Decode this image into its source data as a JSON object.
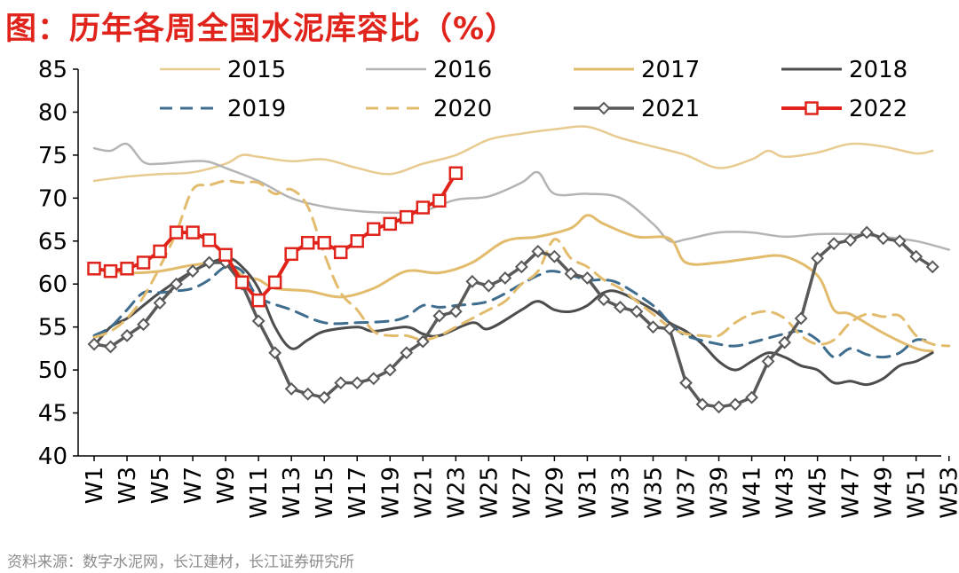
{
  "header": {
    "title": "图：历年各周全国水泥库容比（%）",
    "source": "资料来源：数字水泥网，长江建材，长江证券研究所"
  },
  "chart_data": {
    "type": "line",
    "title": "图：历年各周全国水泥库容比（%）",
    "ylim": [
      40,
      85
    ],
    "yticks": [
      "40",
      "45",
      "50",
      "55",
      "60",
      "65",
      "70",
      "75",
      "80",
      "85"
    ],
    "xticks": [
      "W1",
      "W3",
      "W5",
      "W7",
      "W9",
      "W11",
      "W13",
      "W15",
      "W17",
      "W19",
      "W21",
      "W23",
      "W25",
      "W27",
      "W29",
      "W31",
      "W33",
      "W35",
      "W37",
      "W39",
      "W41",
      "W43",
      "W45",
      "W47",
      "W49",
      "W51",
      "W53"
    ],
    "grid": false,
    "legend_position": "top",
    "series": [
      {
        "name": "2015",
        "color": "#e8cb90",
        "style": "solid",
        "width": 2.5,
        "points": [
          [
            1,
            72
          ],
          [
            3,
            72.5
          ],
          [
            5,
            72.8
          ],
          [
            7,
            73
          ],
          [
            9,
            74
          ],
          [
            10,
            75
          ],
          [
            11,
            74.8
          ],
          [
            13,
            74.3
          ],
          [
            15,
            74.5
          ],
          [
            17,
            73.5
          ],
          [
            19,
            72.8
          ],
          [
            21,
            74
          ],
          [
            23,
            75
          ],
          [
            25,
            76.8
          ],
          [
            27,
            77.5
          ],
          [
            29,
            78
          ],
          [
            31,
            78.3
          ],
          [
            33,
            77
          ],
          [
            35,
            76
          ],
          [
            37,
            75
          ],
          [
            39,
            73.5
          ],
          [
            41,
            74.5
          ],
          [
            42,
            75.5
          ],
          [
            43,
            74.8
          ],
          [
            45,
            75.3
          ],
          [
            47,
            76.3
          ],
          [
            49,
            76
          ],
          [
            51,
            75.2
          ],
          [
            52,
            75.5
          ]
        ]
      },
      {
        "name": "2016",
        "color": "#b4b4b4",
        "style": "solid",
        "width": 2.5,
        "points": [
          [
            1,
            75.8
          ],
          [
            2,
            75.5
          ],
          [
            3,
            76.3
          ],
          [
            4,
            74.2
          ],
          [
            5,
            74
          ],
          [
            7,
            74.3
          ],
          [
            8,
            74.2
          ],
          [
            9,
            73.5
          ],
          [
            11,
            72
          ],
          [
            13,
            70
          ],
          [
            15,
            69
          ],
          [
            17,
            68.5
          ],
          [
            19,
            68.3
          ],
          [
            21,
            68.5
          ],
          [
            23,
            69.8
          ],
          [
            25,
            70.2
          ],
          [
            27,
            71.8
          ],
          [
            28,
            73
          ],
          [
            29,
            70.5
          ],
          [
            31,
            70.5
          ],
          [
            33,
            70
          ],
          [
            35,
            67
          ],
          [
            36,
            65
          ],
          [
            37,
            65.2
          ],
          [
            39,
            66
          ],
          [
            41,
            66
          ],
          [
            43,
            65.5
          ],
          [
            45,
            65.8
          ],
          [
            47,
            65.8
          ],
          [
            49,
            65.5
          ],
          [
            51,
            65
          ],
          [
            53,
            64
          ]
        ]
      },
      {
        "name": "2017",
        "color": "#e2bc6c",
        "style": "solid",
        "width": 3,
        "points": [
          [
            1,
            61.8
          ],
          [
            3,
            61.3
          ],
          [
            5,
            61.5
          ],
          [
            7,
            62.2
          ],
          [
            9,
            62.5
          ],
          [
            10,
            61
          ],
          [
            11,
            60.5
          ],
          [
            12,
            59.5
          ],
          [
            14,
            59.2
          ],
          [
            16,
            58.5
          ],
          [
            18,
            59.5
          ],
          [
            20,
            61.5
          ],
          [
            22,
            61.3
          ],
          [
            24,
            62.5
          ],
          [
            26,
            65
          ],
          [
            28,
            65.5
          ],
          [
            30,
            66.5
          ],
          [
            31,
            68
          ],
          [
            32,
            67
          ],
          [
            34,
            65.5
          ],
          [
            36,
            65.3
          ],
          [
            37,
            62.5
          ],
          [
            39,
            62.5
          ],
          [
            41,
            63
          ],
          [
            43,
            63.2
          ],
          [
            45,
            61
          ],
          [
            46,
            57
          ],
          [
            47,
            56.5
          ],
          [
            49,
            54.3
          ],
          [
            51,
            52.5
          ],
          [
            52,
            52.2
          ]
        ]
      },
      {
        "name": "2018",
        "color": "#4d4d4d",
        "style": "solid",
        "width": 3,
        "points": [
          [
            1,
            52.8
          ],
          [
            2,
            55
          ],
          [
            3,
            56
          ],
          [
            4,
            57.5
          ],
          [
            5,
            59
          ],
          [
            7,
            61.5
          ],
          [
            9,
            63
          ],
          [
            10,
            62
          ],
          [
            11,
            59.5
          ],
          [
            12,
            55
          ],
          [
            13,
            52.5
          ],
          [
            14,
            53.5
          ],
          [
            15,
            54.5
          ],
          [
            17,
            55
          ],
          [
            18,
            54.5
          ],
          [
            20,
            55
          ],
          [
            21,
            54.2
          ],
          [
            22,
            54
          ],
          [
            24,
            55.5
          ],
          [
            25,
            54.8
          ],
          [
            27,
            57
          ],
          [
            28,
            58
          ],
          [
            29,
            57
          ],
          [
            30,
            56.8
          ],
          [
            31,
            57.5
          ],
          [
            32,
            59
          ],
          [
            33,
            59
          ],
          [
            35,
            57
          ],
          [
            36,
            55.5
          ],
          [
            37,
            54.5
          ],
          [
            38,
            53
          ],
          [
            39,
            51
          ],
          [
            40,
            50
          ],
          [
            41,
            51
          ],
          [
            42,
            52
          ],
          [
            43,
            51.5
          ],
          [
            44,
            50.5
          ],
          [
            45,
            50
          ],
          [
            46,
            48.5
          ],
          [
            47,
            48.7
          ],
          [
            48,
            48.3
          ],
          [
            49,
            49
          ],
          [
            50,
            50.5
          ],
          [
            51,
            51
          ],
          [
            52,
            52
          ]
        ]
      },
      {
        "name": "2019",
        "color": "#3f6d8e",
        "style": "dashed",
        "width": 3,
        "points": [
          [
            1,
            54
          ],
          [
            2,
            55
          ],
          [
            3,
            57
          ],
          [
            4,
            59
          ],
          [
            5,
            59
          ],
          [
            6,
            59.2
          ],
          [
            7,
            59.5
          ],
          [
            8,
            60.5
          ],
          [
            9,
            62
          ],
          [
            10,
            61.5
          ],
          [
            11,
            58.5
          ],
          [
            13,
            57
          ],
          [
            15,
            55.5
          ],
          [
            17,
            55.5
          ],
          [
            19,
            55.7
          ],
          [
            20,
            56.2
          ],
          [
            21,
            57.5
          ],
          [
            22,
            57.3
          ],
          [
            23,
            57.5
          ],
          [
            25,
            58
          ],
          [
            27,
            60
          ],
          [
            28,
            61
          ],
          [
            29,
            61.5
          ],
          [
            31,
            60.5
          ],
          [
            32,
            60.5
          ],
          [
            33,
            60
          ],
          [
            35,
            57.5
          ],
          [
            36,
            55.5
          ],
          [
            37,
            54
          ],
          [
            39,
            53
          ],
          [
            40,
            52.8
          ],
          [
            41,
            53.2
          ],
          [
            43,
            54.2
          ],
          [
            44,
            54.5
          ],
          [
            45,
            53.5
          ],
          [
            46,
            51.5
          ],
          [
            47,
            52.5
          ],
          [
            48,
            51.8
          ],
          [
            49,
            51.5
          ],
          [
            50,
            52
          ],
          [
            51,
            53.5
          ],
          [
            52,
            53.2
          ]
        ]
      },
      {
        "name": "2020",
        "color": "#e2bc6c",
        "style": "dashed",
        "width": 3,
        "points": [
          [
            1,
            53.8
          ],
          [
            2,
            54.5
          ],
          [
            3,
            56
          ],
          [
            4,
            58.5
          ],
          [
            5,
            62
          ],
          [
            6,
            66
          ],
          [
            7,
            71
          ],
          [
            8,
            71.5
          ],
          [
            9,
            72
          ],
          [
            10,
            71.8
          ],
          [
            11,
            71.8
          ],
          [
            12,
            70.5
          ],
          [
            13,
            71
          ],
          [
            14,
            69
          ],
          [
            15,
            63.5
          ],
          [
            16,
            59
          ],
          [
            17,
            57
          ],
          [
            18,
            54.5
          ],
          [
            19,
            54
          ],
          [
            20,
            54
          ],
          [
            21,
            53.5
          ],
          [
            22,
            54
          ],
          [
            23,
            55
          ],
          [
            24,
            56
          ],
          [
            25,
            57
          ],
          [
            26,
            58
          ],
          [
            27,
            60
          ],
          [
            28,
            61.5
          ],
          [
            29,
            65.2
          ],
          [
            30,
            63
          ],
          [
            31,
            62
          ],
          [
            32,
            60.5
          ],
          [
            33,
            59.5
          ],
          [
            34,
            58
          ],
          [
            35,
            56.5
          ],
          [
            36,
            55
          ],
          [
            37,
            54.2
          ],
          [
            38,
            54
          ],
          [
            39,
            54
          ],
          [
            40,
            55.5
          ],
          [
            41,
            56.5
          ],
          [
            42,
            56.8
          ],
          [
            43,
            56
          ],
          [
            44,
            54
          ],
          [
            45,
            53
          ],
          [
            46,
            53.5
          ],
          [
            47,
            55.5
          ],
          [
            48,
            56.5
          ],
          [
            49,
            56.2
          ],
          [
            50,
            56.3
          ],
          [
            51,
            54
          ],
          [
            52,
            53
          ],
          [
            53,
            52.8
          ]
        ]
      },
      {
        "name": "2021",
        "color": "#595959",
        "style": "solid",
        "width": 3.5,
        "marker": "diamond",
        "points": [
          [
            1,
            53
          ],
          [
            2,
            52.7
          ],
          [
            3,
            54
          ],
          [
            4,
            55.3
          ],
          [
            5,
            57.8
          ],
          [
            6,
            60
          ],
          [
            7,
            61.5
          ],
          [
            8,
            62.5
          ],
          [
            9,
            62.5
          ],
          [
            10,
            60
          ],
          [
            11,
            55.7
          ],
          [
            12,
            52
          ],
          [
            13,
            47.8
          ],
          [
            14,
            47.2
          ],
          [
            15,
            46.8
          ],
          [
            16,
            48.5
          ],
          [
            17,
            48.5
          ],
          [
            18,
            49
          ],
          [
            19,
            50
          ],
          [
            20,
            52
          ],
          [
            21,
            53.3
          ],
          [
            22,
            56.3
          ],
          [
            23,
            56.8
          ],
          [
            24,
            60.3
          ],
          [
            25,
            59.8
          ],
          [
            26,
            60.7
          ],
          [
            27,
            62
          ],
          [
            28,
            63.8
          ],
          [
            29,
            63.2
          ],
          [
            30,
            61.2
          ],
          [
            31,
            60.7
          ],
          [
            32,
            58.2
          ],
          [
            33,
            57.3
          ],
          [
            34,
            56.8
          ],
          [
            35,
            55
          ],
          [
            36,
            54.8
          ],
          [
            37,
            48.5
          ],
          [
            38,
            46
          ],
          [
            39,
            45.7
          ],
          [
            40,
            46
          ],
          [
            41,
            46.8
          ],
          [
            42,
            51
          ],
          [
            43,
            53.2
          ],
          [
            44,
            56
          ],
          [
            45,
            63
          ],
          [
            46,
            64.7
          ],
          [
            47,
            65.1
          ],
          [
            48,
            66
          ],
          [
            49,
            65.3
          ],
          [
            50,
            65
          ],
          [
            51,
            63.2
          ],
          [
            52,
            62
          ]
        ]
      },
      {
        "name": "2022",
        "color": "#e0241b",
        "style": "solid",
        "width": 4,
        "marker": "square",
        "points": [
          [
            1,
            61.8
          ],
          [
            2,
            61.5
          ],
          [
            3,
            61.8
          ],
          [
            4,
            62.5
          ],
          [
            5,
            63.8
          ],
          [
            6,
            66
          ],
          [
            7,
            66
          ],
          [
            8,
            65.1
          ],
          [
            9,
            63.4
          ],
          [
            10,
            60.2
          ],
          [
            11,
            58.1
          ],
          [
            12,
            60.2
          ],
          [
            13,
            63.5
          ],
          [
            14,
            64.8
          ],
          [
            15,
            64.8
          ],
          [
            16,
            63.7
          ],
          [
            17,
            65
          ],
          [
            18,
            66.4
          ],
          [
            19,
            67
          ],
          [
            20,
            67.8
          ],
          [
            21,
            68.9
          ],
          [
            22,
            69.7
          ],
          [
            23,
            72.9
          ]
        ]
      }
    ]
  }
}
